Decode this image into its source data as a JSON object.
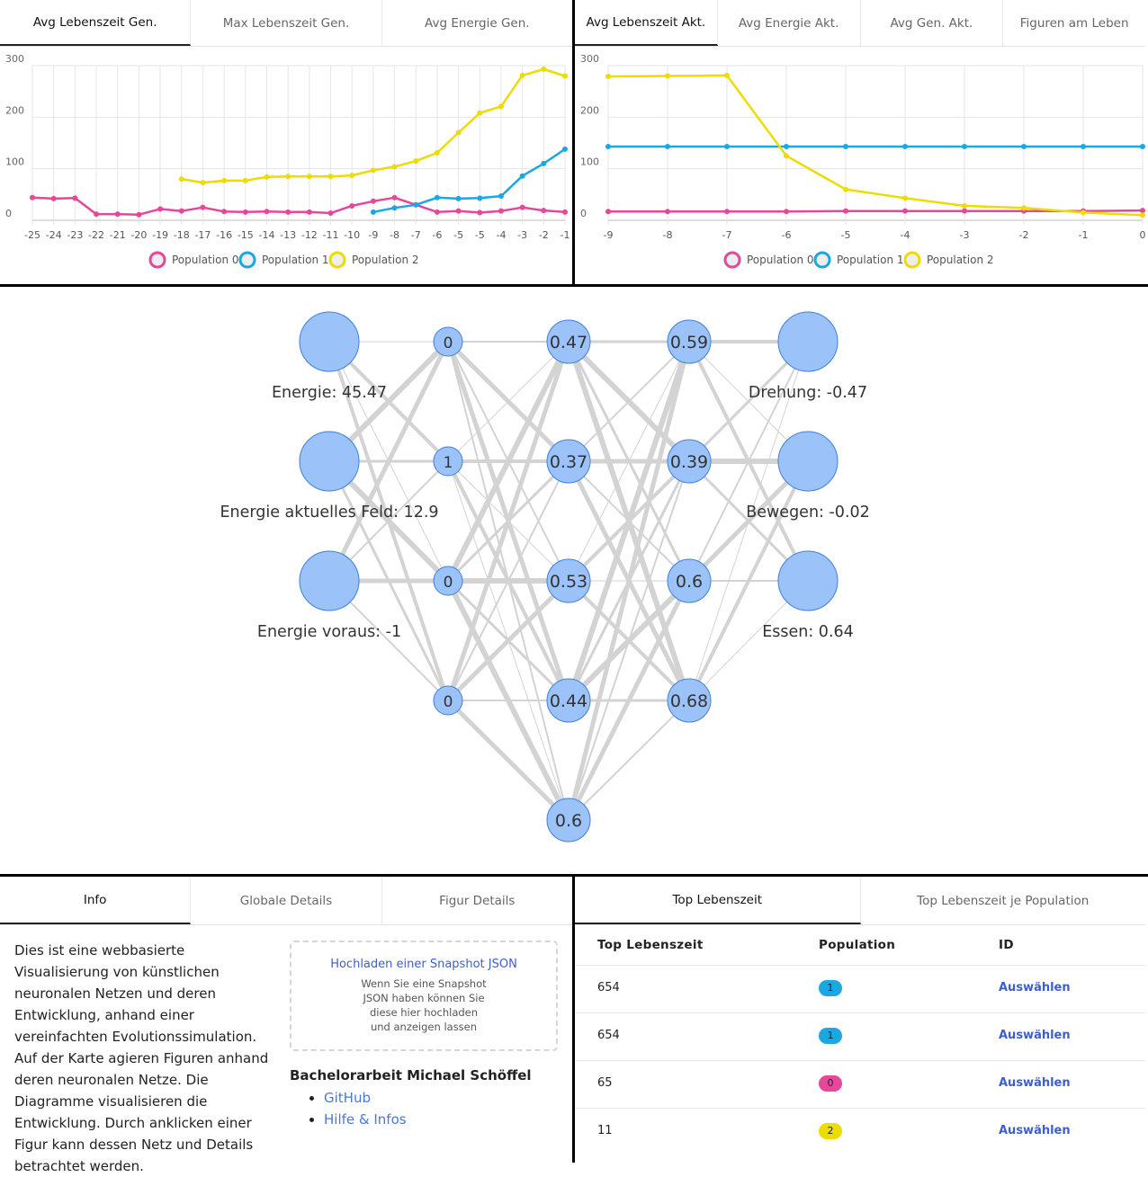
{
  "left_panel": {
    "tabs": [
      "Avg Lebenszeit Gen.",
      "Max Lebenszeit Gen.",
      "Avg Energie Gen."
    ],
    "active_tab": 0
  },
  "right_panel": {
    "tabs": [
      "Avg Lebenszeit Akt.",
      "Avg Energie Akt.",
      "Avg Gen. Akt.",
      "Figuren am Leben"
    ],
    "active_tab": 0
  },
  "chart_data": [
    {
      "type": "line",
      "categories": [
        "-25",
        "-24",
        "-23",
        "-22",
        "-21",
        "-20",
        "-19",
        "-18",
        "-17",
        "-16",
        "-15",
        "-14",
        "-13",
        "-12",
        "-11",
        "-10",
        "-9",
        "-8",
        "-7",
        "-6",
        "-5",
        "-5",
        "-4",
        "-3",
        "-2",
        "-1"
      ],
      "ylim": [
        0,
        300
      ],
      "yticks": [
        0,
        100,
        200,
        300
      ],
      "grid": true,
      "legend": "bottom",
      "series": [
        {
          "name": "Population 0",
          "color": "#e6479b",
          "values": [
            44,
            42,
            43,
            12,
            12,
            11,
            22,
            18,
            25,
            17,
            16,
            17,
            16,
            16,
            14,
            28,
            37,
            44,
            30,
            16,
            18,
            15,
            18,
            25,
            19,
            16
          ]
        },
        {
          "name": "Population 1",
          "color": "#1aa7e3",
          "values": [
            null,
            null,
            null,
            null,
            null,
            null,
            null,
            null,
            null,
            null,
            null,
            null,
            null,
            null,
            null,
            null,
            16,
            24,
            30,
            44,
            42,
            43,
            47,
            86,
            110,
            138
          ]
        },
        {
          "name": "Population 2",
          "color": "#ecdc00",
          "values": [
            null,
            null,
            null,
            null,
            null,
            null,
            null,
            80,
            73,
            77,
            77,
            84,
            85,
            85,
            85,
            87,
            97,
            104,
            115,
            131,
            170,
            208,
            221,
            281,
            293,
            280
          ]
        }
      ]
    },
    {
      "type": "line",
      "x": [
        -9,
        -8,
        -7,
        -6,
        -5,
        -4,
        -3,
        -2,
        -1,
        0
      ],
      "xlim": [
        -9,
        0
      ],
      "xticks": [
        -9,
        -8,
        -7,
        -6,
        -5,
        -4,
        -3,
        -2,
        -1,
        0
      ],
      "ylim": [
        0,
        300
      ],
      "yticks": [
        0,
        100,
        200,
        300
      ],
      "grid": true,
      "legend": "bottom",
      "series": [
        {
          "name": "Population 0",
          "color": "#e6479b",
          "values": [
            17,
            17,
            17,
            17,
            18,
            18,
            18,
            18,
            18,
            19
          ]
        },
        {
          "name": "Population 1",
          "color": "#1aa7e3",
          "values": [
            143,
            143,
            143,
            143,
            143,
            143,
            143,
            143,
            143,
            143
          ]
        },
        {
          "name": "Population 2",
          "color": "#ecdc00",
          "values": [
            279,
            280,
            281,
            125,
            60,
            43,
            28,
            24,
            15,
            10
          ]
        }
      ]
    }
  ],
  "network": {
    "layers": [
      {
        "nodes": [
          {
            "label": "Energie: 45.47"
          },
          {
            "label": "Energie aktuelles Feld: 12.9"
          },
          {
            "label": "Energie voraus: -1"
          }
        ]
      },
      {
        "nodes": [
          {
            "value": 0
          },
          {
            "value": 1
          },
          {
            "value": 0
          },
          {
            "value": 0
          }
        ]
      },
      {
        "nodes": [
          {
            "value": 0.47
          },
          {
            "value": 0.37
          },
          {
            "value": 0.53
          },
          {
            "value": 0.44
          },
          {
            "value": 0.6
          }
        ]
      },
      {
        "nodes": [
          {
            "value": 0.59
          },
          {
            "value": 0.39
          },
          {
            "value": 0.6
          },
          {
            "value": 0.68
          }
        ]
      },
      {
        "nodes": [
          {
            "label": "Drehung: -0.47"
          },
          {
            "label": "Bewegen: -0.02"
          },
          {
            "label": "Essen: 0.64"
          }
        ]
      }
    ]
  },
  "info_panel": {
    "tabs": [
      "Info",
      "Globale Details",
      "Figur Details"
    ],
    "active_tab": 0,
    "text": "Dies ist eine webbasierte Visualisierung von künstlichen neuronalen Netzen und deren Entwicklung, anhand einer vereinfachten Evolutionssimulation. Auf der Karte agieren Figuren anhand deren neuronalen Netze. Die Diagramme visualisieren die Entwicklung. Durch anklicken einer Figur kann dessen Netz und Details betrachtet werden.",
    "upload": {
      "title": "Hochladen einer Snapshot JSON",
      "lines": [
        "Wenn Sie eine Snapshot",
        "JSON haben können Sie",
        "diese hier hochladen",
        "und anzeigen lassen"
      ]
    },
    "credit": "Bachelorarbeit Michael Schöffel",
    "links": [
      "GitHub",
      "Hilfe & Infos"
    ]
  },
  "table_panel": {
    "tabs": [
      "Top Lebenszeit",
      "Top Lebenszeit je Population"
    ],
    "active_tab": 0,
    "columns": [
      "Top Lebenszeit",
      "Population",
      "ID"
    ],
    "rows": [
      {
        "lifetime": 654,
        "population": 1,
        "action": "Auswählen"
      },
      {
        "lifetime": 654,
        "population": 1,
        "action": "Auswählen"
      },
      {
        "lifetime": 65,
        "population": 0,
        "action": "Auswählen"
      },
      {
        "lifetime": 11,
        "population": 2,
        "action": "Auswählen"
      }
    ]
  }
}
